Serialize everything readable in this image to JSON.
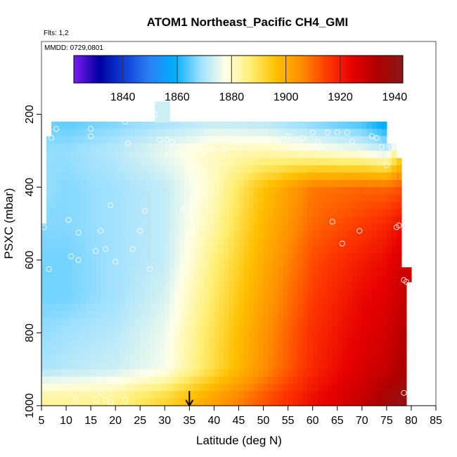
{
  "chart_data": {
    "type": "heatmap",
    "title": "ATOM1 Northeast_Pacific CH4_GMI",
    "annotations": [
      "Flts: 1,2",
      "MMDD: 0729,0801"
    ],
    "xlabel": "Latitude (deg N)",
    "ylabel": "PSXC (mbar)",
    "xlim": [
      5,
      85
    ],
    "ylim": [
      1000,
      0
    ],
    "xticks": [
      "5",
      "10",
      "15",
      "20",
      "25",
      "30",
      "35",
      "40",
      "45",
      "50",
      "55",
      "60",
      "65",
      "70",
      "75",
      "80",
      "85"
    ],
    "yticks": [
      "200",
      "400",
      "600",
      "800",
      "1000"
    ],
    "colorbar": {
      "min": 1822,
      "max": 1943,
      "ticks": [
        "1840",
        "1860",
        "1880",
        "1900",
        "1920",
        "1940"
      ],
      "colors": [
        "#7a1cf0",
        "#0000a0",
        "#1040d8",
        "#2a80f5",
        "#00b0ff",
        "#9ee0ff",
        "#ffffe8",
        "#ffee70",
        "#ffc000",
        "#ff8c00",
        "#ff3a00",
        "#e80000",
        "#b00000",
        "#8b1818"
      ]
    },
    "heatmap_summary": {
      "lat_edges": [
        6.5,
        10,
        20,
        30,
        40,
        50,
        60,
        70,
        75,
        78
      ],
      "pressure_levels_mbar": [
        230,
        300,
        400,
        500,
        600,
        700,
        800,
        900,
        980
      ],
      "note_values_ch4_ppb": [
        [
          1866,
          1865,
          1867,
          1870,
          1873,
          1872,
          1868,
          1864,
          1858,
          1840
        ],
        [
          1868,
          1868,
          1871,
          1876,
          1881,
          1882,
          1879,
          1876,
          1872,
          1890
        ],
        [
          1868,
          1867,
          1869,
          1872,
          1881,
          1896,
          1908,
          1910,
          1910,
          1912
        ],
        [
          1867,
          1867,
          1869,
          1872,
          1883,
          1898,
          1910,
          1915,
          1918,
          1922
        ],
        [
          1866,
          1866,
          1869,
          1872,
          1886,
          1900,
          1913,
          1920,
          1923,
          1928
        ],
        [
          1866,
          1866,
          1869,
          1874,
          1888,
          1902,
          1915,
          1923,
          1926,
          1930
        ],
        [
          1868,
          1869,
          1871,
          1876,
          1890,
          1904,
          1917,
          1925,
          1928,
          1932
        ],
        [
          1870,
          1871,
          1873,
          1877,
          1891,
          1905,
          1918,
          1927,
          1930,
          1934
        ],
        [
          1884,
          1884,
          1885,
          1892,
          1902,
          1912,
          1922,
          1930,
          1936,
          1940
        ]
      ]
    },
    "marker": {
      "x": 35,
      "type": "down-arrow"
    }
  }
}
